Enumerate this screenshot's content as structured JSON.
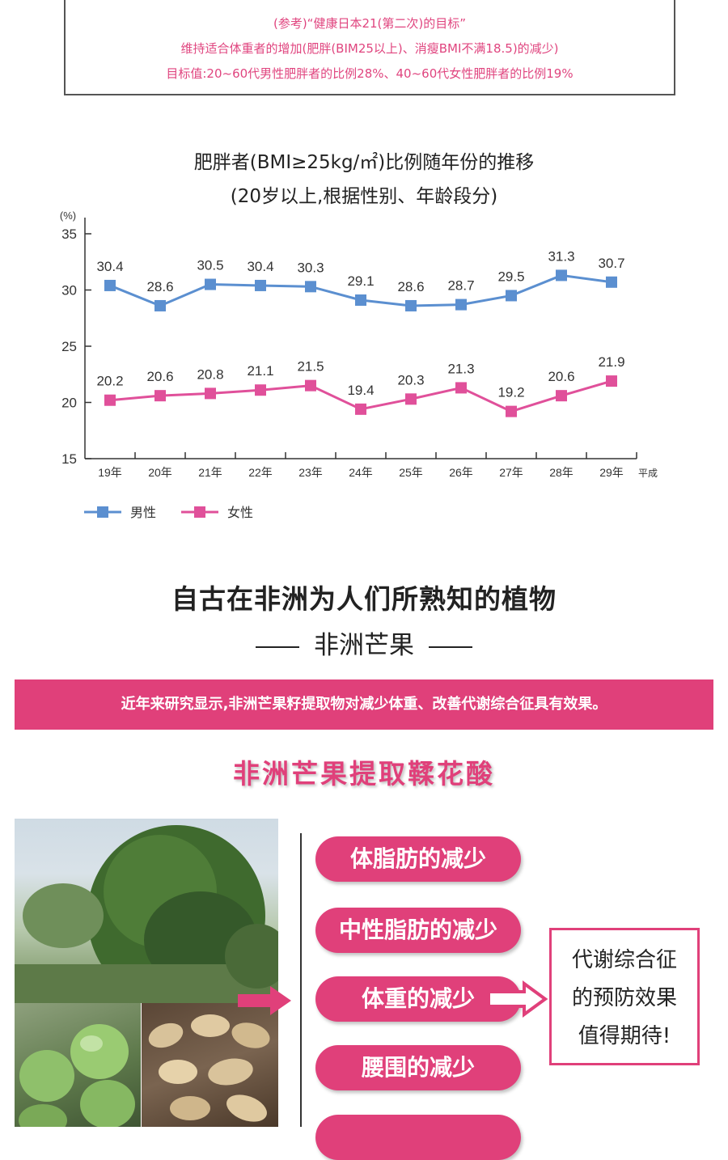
{
  "reference": {
    "line1": "(参考)“健康日本21(第二次)的目标”",
    "line2": "维持适合体重者的增加(肥胖(BIM25以上)、消瘦BMI不满18.5)的减少)",
    "line3": "目标值:20~60代男性肥胖者的比例28%、40~60代女性肥胖者的比例19%"
  },
  "chart_titles": {
    "title": "肥胖者(BMI≥25kg/㎡)比例随年份的推移",
    "subtitle": "(20岁以上,根据性别、年龄段分)"
  },
  "chart_data": {
    "type": "line",
    "title": "肥胖者(BMI≥25kg/㎡)比例随年份的推移",
    "subtitle": "(20岁以上,根据性别、年龄段分)",
    "ylabel": "(%)",
    "xlabel": "平成",
    "categories": [
      "19年",
      "20年",
      "21年",
      "22年",
      "23年",
      "24年",
      "25年",
      "26年",
      "27年",
      "28年",
      "29年"
    ],
    "ylim": [
      15,
      35
    ],
    "yticks": [
      15,
      20,
      25,
      30,
      35
    ],
    "grid": false,
    "legend_position": "bottom-left",
    "series": [
      {
        "name": "男性",
        "color": "#5b8fd0",
        "values": [
          30.4,
          28.6,
          30.5,
          30.4,
          30.3,
          29.1,
          28.6,
          28.7,
          29.5,
          31.3,
          30.7
        ]
      },
      {
        "name": "女性",
        "color": "#e0509a",
        "values": [
          20.2,
          20.6,
          20.8,
          21.1,
          21.5,
          19.4,
          20.3,
          21.3,
          19.2,
          20.6,
          21.9
        ]
      }
    ]
  },
  "section": {
    "title": "自古在非洲为人们所熟知的植物",
    "subtitle": "非洲芒果"
  },
  "banner": {
    "text": "近年来研究显示,非洲芒果籽提取物对减少体重、改善代谢综合征具有效果。"
  },
  "extract_title": "非洲芒果提取鞣花酸",
  "benefits": [
    "体脂肪的减少",
    "中性脂肪的减少",
    "体重的减少",
    "腰围的减少"
  ],
  "expectation": {
    "line1": "代谢综合征",
    "line2": "的预防效果",
    "line3": "值得期待!"
  },
  "colors": {
    "accent": "#e0407a",
    "male_series": "#5b8fd0",
    "female_series": "#e0509a"
  }
}
